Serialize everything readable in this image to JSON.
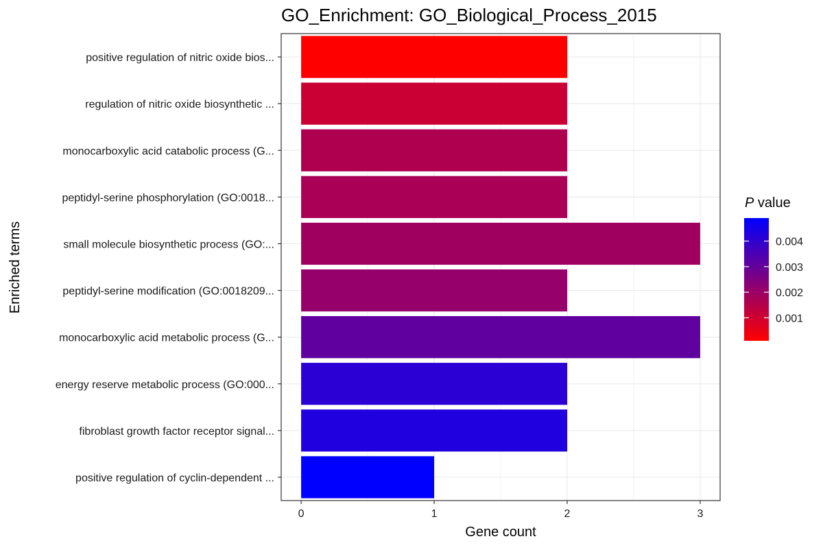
{
  "chart_data": {
    "type": "bar",
    "orientation": "horizontal",
    "title": "GO_Enrichment: GO_Biological_Process_2015",
    "xlabel": "Gene count",
    "ylabel": "Enriched terms",
    "xlim": [
      -0.15,
      3.15
    ],
    "xticks": [
      "0",
      "1",
      "2",
      "3"
    ],
    "grid": true,
    "categories": [
      "positive regulation of nitric oxide bios...",
      "regulation of nitric oxide biosynthetic ...",
      "monocarboxylic acid catabolic process (G...",
      "peptidyl-serine phosphorylation (GO:0018...",
      "small molecule biosynthetic process (GO:...",
      "peptidyl-serine modification (GO:0018209...",
      "monocarboxylic acid metabolic process (G...",
      "energy reserve metabolic process (GO:000...",
      "fibroblast growth factor receptor signal...",
      "positive regulation of cyclin-dependent ..."
    ],
    "values": [
      2,
      2,
      2,
      2,
      3,
      2,
      3,
      2,
      2,
      1
    ],
    "p_values": [
      0.0001,
      0.0011,
      0.0016,
      0.0017,
      0.0019,
      0.0021,
      0.0031,
      0.0041,
      0.0043,
      0.0049
    ],
    "color_scale": {
      "title_italic": "P",
      "title_rest": " value",
      "low_color": "#ff0000",
      "high_color": "#0000ff",
      "range": [
        0.0001,
        0.0049
      ],
      "ticks": [
        0.001,
        0.002,
        0.003,
        0.004
      ],
      "tick_labels": [
        "0.001",
        "0.002",
        "0.003",
        "0.004"
      ]
    }
  }
}
